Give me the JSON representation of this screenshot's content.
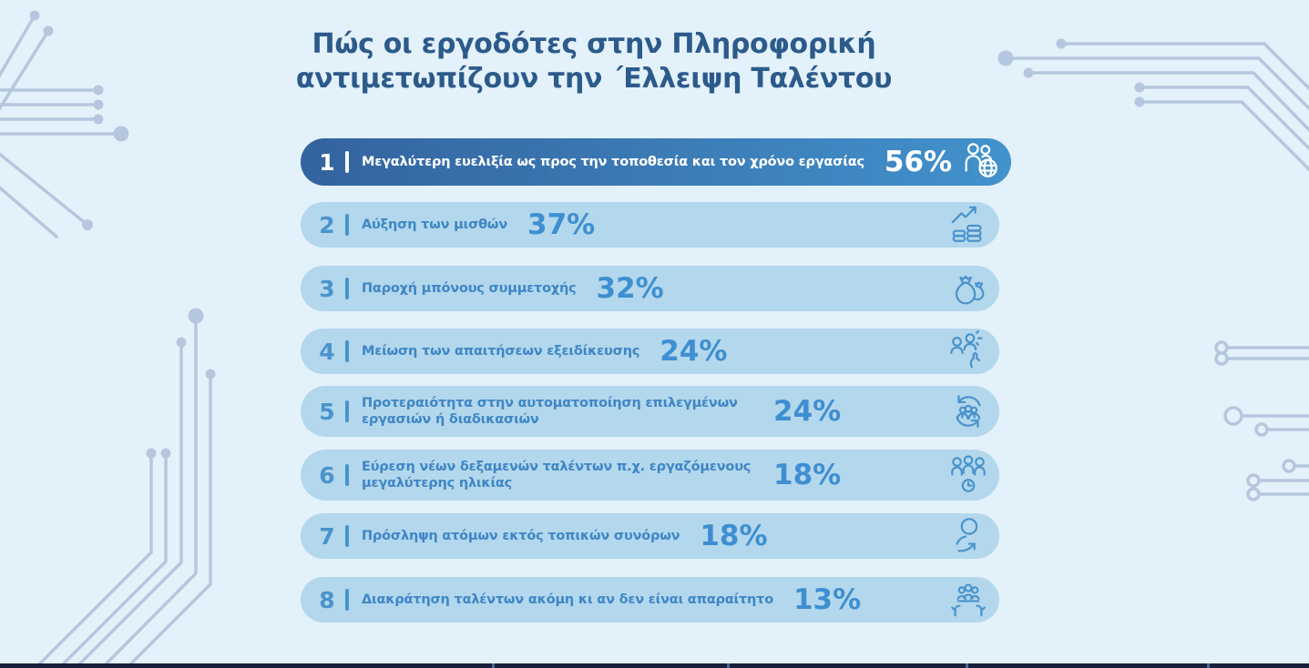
{
  "title": {
    "line1": "Πώς οι εργοδότες στην Πληροφορική",
    "line2": "αντιμετωπίζουν την ΄Ελλειψη Ταλέντου"
  },
  "rows": [
    {
      "rank": "1",
      "label": "Μεγαλύτερη ευελιξία ως προς την τοποθεσία και τον χρόνο εργασίας",
      "percent": "56%",
      "icon": "people-globe-icon"
    },
    {
      "rank": "2",
      "label": "Αύξηση των μισθών",
      "percent": "37%",
      "icon": "salary-growth-coins-icon"
    },
    {
      "rank": "3",
      "label": "Παροχή μπόνους συμμετοχής",
      "percent": "32%",
      "icon": "money-bags-icon"
    },
    {
      "rank": "4",
      "label": "Μείωση των απαιτήσεων εξειδίκευσης",
      "percent": "24%",
      "icon": "skill-requirements-icon"
    },
    {
      "rank": "5",
      "label": "Προτεραιότητα στην αυτοματοποίηση επιλεγμένων εργασιών ή διαδικασιών",
      "percent": "24%",
      "icon": "automation-cycle-icon"
    },
    {
      "rank": "6",
      "label": "Εύρεση νέων δεξαμενών ταλέντων π.χ. εργαζόμενους μεγαλύτερης ηλικίας",
      "percent": "18%",
      "icon": "talent-pool-clock-icon"
    },
    {
      "rank": "7",
      "label": "Πρόσληψη ατόμων εκτός τοπικών συνόρων",
      "percent": "18%",
      "icon": "hire-beyond-borders-icon"
    },
    {
      "rank": "8",
      "label": "Διακράτηση ταλέντων ακόμη κι αν δεν είναι απαραίτητο",
      "percent": "13%",
      "icon": "talent-retention-hands-icon"
    }
  ],
  "chart_data": {
    "type": "bar",
    "orientation": "horizontal",
    "title": "Πώς οι εργοδότες στην Πληροφορική αντιμετωπίζουν την ΄Ελλειψη Ταλέντου",
    "categories": [
      "Μεγαλύτερη ευελιξία ως προς την τοποθεσία και τον χρόνο εργασίας",
      "Αύξηση των μισθών",
      "Παροχή μπόνους συμμετοχής",
      "Μείωση των απαιτήσεων εξειδίκευσης",
      "Προτεραιότητα στην αυτοματοποίηση επιλεγμένων εργασιών ή διαδικασιών",
      "Εύρεση νέων δεξαμενών ταλέντων π.χ. εργαζόμενους μεγαλύτερης ηλικίας",
      "Πρόσληψη ατόμων εκτός τοπικών συνόρων",
      "Διακράτηση ταλέντων ακόμη κι αν δεν είναι απαραίτητο"
    ],
    "values": [
      56,
      37,
      32,
      24,
      24,
      18,
      18,
      13
    ],
    "value_labels": [
      "56%",
      "37%",
      "32%",
      "24%",
      "24%",
      "18%",
      "18%",
      "13%"
    ],
    "unit": "%",
    "highlighted_index": 0,
    "legend": "none",
    "grid": false
  },
  "colors": {
    "background": "#e3f1fa",
    "highlight_bar_gradient_start": "#34639f",
    "highlight_bar_gradient_end": "#4292cc",
    "light_bar": "#b3d7ec",
    "bar_text_blue": "#3e86c6",
    "percent_blue": "#3e8fd1",
    "title_navy": "#2c5a8b",
    "circuit_trace": "#b5c7df",
    "bottom_line": "#16203a"
  }
}
